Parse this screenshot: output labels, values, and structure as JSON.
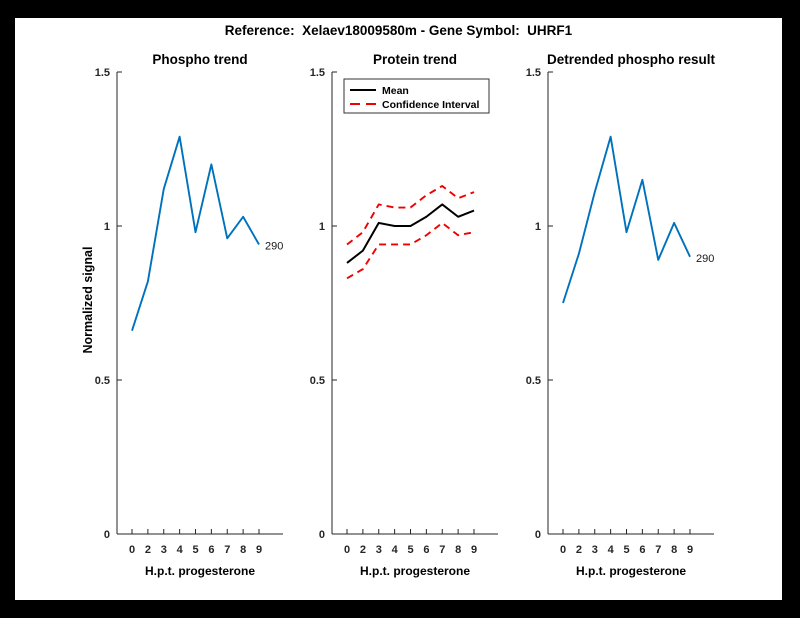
{
  "figure": {
    "title": "Reference:  Xelaev18009580m - Gene Symbol:  UHRF1",
    "background_color": "#000000",
    "canvas_color": "#ffffff"
  },
  "axes": {
    "ylabel": "Normalized signal",
    "xlabel": "H.p.t. progesterone",
    "axis_color": "#262626"
  },
  "colors": {
    "line_blue": "#0072BD",
    "ci_red": "#F20000",
    "mean_black": "#000000"
  },
  "chart_data": [
    {
      "type": "line",
      "title": "Phospho trend",
      "xlabel": "H.p.t. progesterone",
      "ylabel": "Normalized signal",
      "x_tick_labels": [
        "0",
        "2",
        "3",
        "4",
        "5",
        "6",
        "7",
        "8",
        "9"
      ],
      "y_ticks": [
        0,
        0.5,
        1,
        1.5
      ],
      "ylim": [
        0,
        1.5
      ],
      "grid": false,
      "series": [
        {
          "name": "phospho-signal",
          "color": "#0072BD",
          "style": "solid",
          "values": [
            0.66,
            0.82,
            1.12,
            1.29,
            0.98,
            1.2,
            0.96,
            1.03,
            0.94
          ]
        }
      ],
      "end_label": "290",
      "legend": null
    },
    {
      "type": "line",
      "title": "Protein trend",
      "xlabel": "H.p.t. progesterone",
      "ylabel": "",
      "x_tick_labels": [
        "0",
        "2",
        "3",
        "4",
        "5",
        "6",
        "7",
        "8",
        "9"
      ],
      "y_ticks": [
        0,
        0.5,
        1,
        1.5
      ],
      "ylim": [
        0,
        1.5
      ],
      "grid": false,
      "series": [
        {
          "name": "mean",
          "color": "#000000",
          "style": "solid",
          "values": [
            0.88,
            0.92,
            1.01,
            1.0,
            1.0,
            1.03,
            1.07,
            1.03,
            1.05
          ]
        },
        {
          "name": "ci-upper",
          "color": "#F20000",
          "style": "dashed",
          "values": [
            0.94,
            0.98,
            1.07,
            1.06,
            1.06,
            1.1,
            1.13,
            1.09,
            1.11
          ]
        },
        {
          "name": "ci-lower",
          "color": "#F20000",
          "style": "dashed",
          "values": [
            0.83,
            0.86,
            0.94,
            0.94,
            0.94,
            0.97,
            1.01,
            0.97,
            0.98
          ]
        }
      ],
      "end_label": null,
      "legend": {
        "position": "northwest",
        "entries": [
          {
            "label": "Mean",
            "color": "#000000",
            "style": "solid"
          },
          {
            "label": "Confidence Interval",
            "color": "#F20000",
            "style": "dashed"
          }
        ]
      }
    },
    {
      "type": "line",
      "title": "Detrended phospho result",
      "xlabel": "H.p.t. progesterone",
      "ylabel": "",
      "x_tick_labels": [
        "0",
        "2",
        "3",
        "4",
        "5",
        "6",
        "7",
        "8",
        "9"
      ],
      "y_ticks": [
        0,
        0.5,
        1,
        1.5
      ],
      "ylim": [
        0,
        1.5
      ],
      "grid": false,
      "series": [
        {
          "name": "detrended-phospho",
          "color": "#0072BD",
          "style": "solid",
          "values": [
            0.75,
            0.91,
            1.11,
            1.29,
            0.98,
            1.15,
            0.89,
            1.01,
            0.9
          ]
        }
      ],
      "end_label": "290",
      "legend": null
    }
  ]
}
